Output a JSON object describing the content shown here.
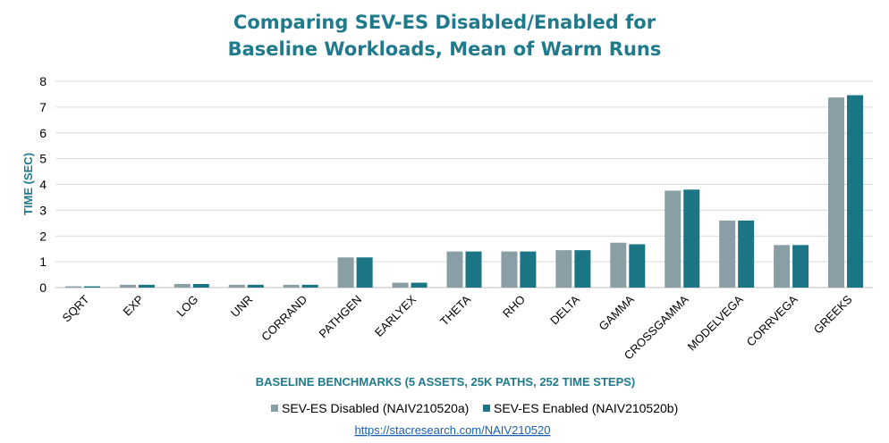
{
  "chart_data": {
    "type": "bar",
    "title_lines": [
      "Comparing SEV-ES Disabled/Enabled for",
      "Baseline Workloads, Mean of Warm Runs"
    ],
    "xlabel": "BASELINE BENCHMARKS (5 ASSETS, 25K PATHS, 252 TIME STEPS)",
    "ylabel": "TIME (SEC)",
    "ylim": [
      0,
      8
    ],
    "yticks": [
      0,
      1,
      2,
      3,
      4,
      5,
      6,
      7,
      8
    ],
    "grid": true,
    "legend_position": "bottom",
    "categories": [
      "SQRT",
      "EXP",
      "LOG",
      "UNR",
      "CORRAND",
      "PATHGEN",
      "EARLYEX",
      "THETA",
      "RHO",
      "DELTA",
      "GAMMA",
      "CROSSGAMMA",
      "MODELVEGA",
      "CORRVEGA",
      "GREEKS"
    ],
    "series": [
      {
        "name": "SEV-ES Disabled (NAIV210520a)",
        "color": "#8a9ea6",
        "values": [
          0.05,
          0.11,
          0.14,
          0.11,
          0.11,
          1.17,
          0.19,
          1.4,
          1.4,
          1.45,
          1.74,
          3.76,
          2.6,
          1.65,
          7.37
        ]
      },
      {
        "name": "SEV-ES Enabled (NAIV210520b)",
        "color": "#1b7585",
        "values": [
          0.05,
          0.11,
          0.14,
          0.11,
          0.11,
          1.17,
          0.19,
          1.4,
          1.4,
          1.45,
          1.68,
          3.8,
          2.6,
          1.65,
          7.46
        ]
      }
    ]
  },
  "footer": {
    "url": "https://stacresearch.com/NAIV210520"
  },
  "colors": {
    "title": "#1f7a8c",
    "gridline": "#d9d9d9",
    "axis": "#bfbfbf"
  }
}
